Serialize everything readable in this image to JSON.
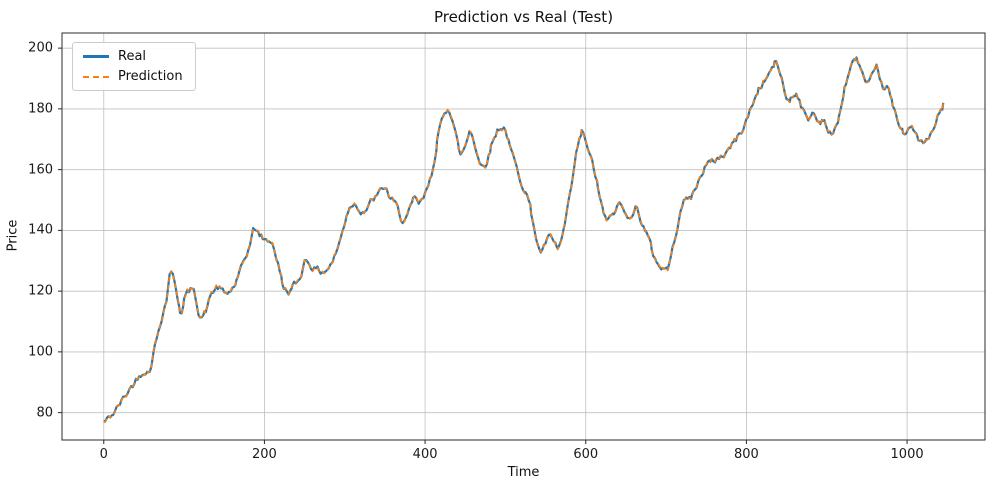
{
  "figure": {
    "background": "#ffffff"
  },
  "chart_data": {
    "type": "line",
    "title": "Prediction vs Real (Test)",
    "xlabel": "Time",
    "ylabel": "Price",
    "xlim": [
      -52,
      1097
    ],
    "ylim": [
      71,
      205
    ],
    "xticks": [
      0,
      200,
      400,
      600,
      800,
      1000
    ],
    "yticks": [
      80,
      100,
      120,
      140,
      160,
      180,
      200
    ],
    "grid": true,
    "grid_color": "#c0c0c0",
    "spine_color": "#2b2b2b",
    "legend": {
      "position": "upper-left",
      "entries": [
        {
          "label": "Real",
          "color": "#1f77b4",
          "style": "solid"
        },
        {
          "label": "Prediction",
          "color": "#ff7f0e",
          "style": "dashed"
        }
      ]
    },
    "series": [
      {
        "name": "Real",
        "color": "#1f77b4",
        "style": "solid",
        "linewidth": 2.2,
        "points": [
          [
            0,
            77
          ],
          [
            10,
            80
          ],
          [
            20,
            84
          ],
          [
            30,
            88
          ],
          [
            40,
            92
          ],
          [
            50,
            95
          ],
          [
            55,
            93
          ],
          [
            62,
            103
          ],
          [
            70,
            113
          ],
          [
            78,
            120
          ],
          [
            82,
            134
          ],
          [
            88,
            118
          ],
          [
            95,
            111
          ],
          [
            100,
            120
          ],
          [
            110,
            121
          ],
          [
            118,
            110
          ],
          [
            125,
            113
          ],
          [
            132,
            120
          ],
          [
            140,
            122
          ],
          [
            150,
            118
          ],
          [
            158,
            121
          ],
          [
            165,
            124
          ],
          [
            172,
            130
          ],
          [
            180,
            136
          ],
          [
            186,
            143
          ],
          [
            192,
            138
          ],
          [
            200,
            136
          ],
          [
            208,
            137
          ],
          [
            215,
            128
          ],
          [
            222,
            120
          ],
          [
            228,
            119
          ],
          [
            235,
            122
          ],
          [
            242,
            124
          ],
          [
            250,
            133
          ],
          [
            256,
            128
          ],
          [
            262,
            127
          ],
          [
            270,
            126
          ],
          [
            278,
            128
          ],
          [
            285,
            131
          ],
          [
            295,
            140
          ],
          [
            302,
            148
          ],
          [
            310,
            150
          ],
          [
            318,
            146
          ],
          [
            325,
            147
          ],
          [
            332,
            150
          ],
          [
            340,
            152
          ],
          [
            348,
            155
          ],
          [
            355,
            150
          ],
          [
            362,
            148
          ],
          [
            370,
            142
          ],
          [
            378,
            146
          ],
          [
            385,
            151
          ],
          [
            392,
            148
          ],
          [
            400,
            153
          ],
          [
            408,
            161
          ],
          [
            415,
            175
          ],
          [
            422,
            178
          ],
          [
            428,
            182
          ],
          [
            435,
            174
          ],
          [
            442,
            162
          ],
          [
            448,
            168
          ],
          [
            455,
            175
          ],
          [
            462,
            166
          ],
          [
            468,
            159
          ],
          [
            475,
            163
          ],
          [
            482,
            170
          ],
          [
            490,
            175
          ],
          [
            498,
            174
          ],
          [
            505,
            165
          ],
          [
            512,
            160
          ],
          [
            518,
            155
          ],
          [
            525,
            152
          ],
          [
            532,
            143
          ],
          [
            540,
            131
          ],
          [
            546,
            133
          ],
          [
            552,
            140
          ],
          [
            558,
            135
          ],
          [
            565,
            133
          ],
          [
            572,
            142
          ],
          [
            580,
            155
          ],
          [
            588,
            170
          ],
          [
            595,
            174
          ],
          [
            602,
            164
          ],
          [
            608,
            160
          ],
          [
            615,
            151
          ],
          [
            622,
            142
          ],
          [
            628,
            143
          ],
          [
            635,
            147
          ],
          [
            642,
            150
          ],
          [
            648,
            143
          ],
          [
            655,
            146
          ],
          [
            662,
            148
          ],
          [
            668,
            142
          ],
          [
            675,
            138
          ],
          [
            682,
            131
          ],
          [
            690,
            128
          ],
          [
            695,
            127
          ],
          [
            702,
            128
          ],
          [
            710,
            140
          ],
          [
            718,
            152
          ],
          [
            725,
            150
          ],
          [
            732,
            152
          ],
          [
            740,
            158
          ],
          [
            748,
            163
          ],
          [
            755,
            162
          ],
          [
            762,
            164
          ],
          [
            770,
            165
          ],
          [
            778,
            168
          ],
          [
            785,
            170
          ],
          [
            792,
            173
          ],
          [
            800,
            178
          ],
          [
            808,
            184
          ],
          [
            815,
            188
          ],
          [
            822,
            190
          ],
          [
            828,
            193
          ],
          [
            835,
            196
          ],
          [
            842,
            190
          ],
          [
            848,
            181
          ],
          [
            855,
            184
          ],
          [
            862,
            186
          ],
          [
            868,
            179
          ],
          [
            875,
            175
          ],
          [
            882,
            180
          ],
          [
            888,
            174
          ],
          [
            895,
            178
          ],
          [
            902,
            170
          ],
          [
            908,
            172
          ],
          [
            915,
            180
          ],
          [
            922,
            190
          ],
          [
            928,
            194
          ],
          [
            935,
            198
          ],
          [
            942,
            192
          ],
          [
            948,
            186
          ],
          [
            955,
            190
          ],
          [
            962,
            194
          ],
          [
            968,
            185
          ],
          [
            975,
            187
          ],
          [
            982,
            178
          ],
          [
            988,
            174
          ],
          [
            995,
            172
          ],
          [
            1002,
            175
          ],
          [
            1010,
            170
          ],
          [
            1018,
            168
          ],
          [
            1025,
            170
          ],
          [
            1032,
            174
          ],
          [
            1040,
            181
          ],
          [
            1045,
            182
          ]
        ]
      },
      {
        "name": "Prediction",
        "color": "#ff7f0e",
        "style": "dashed",
        "linewidth": 1.6,
        "overlaps_series": "Real"
      }
    ]
  }
}
